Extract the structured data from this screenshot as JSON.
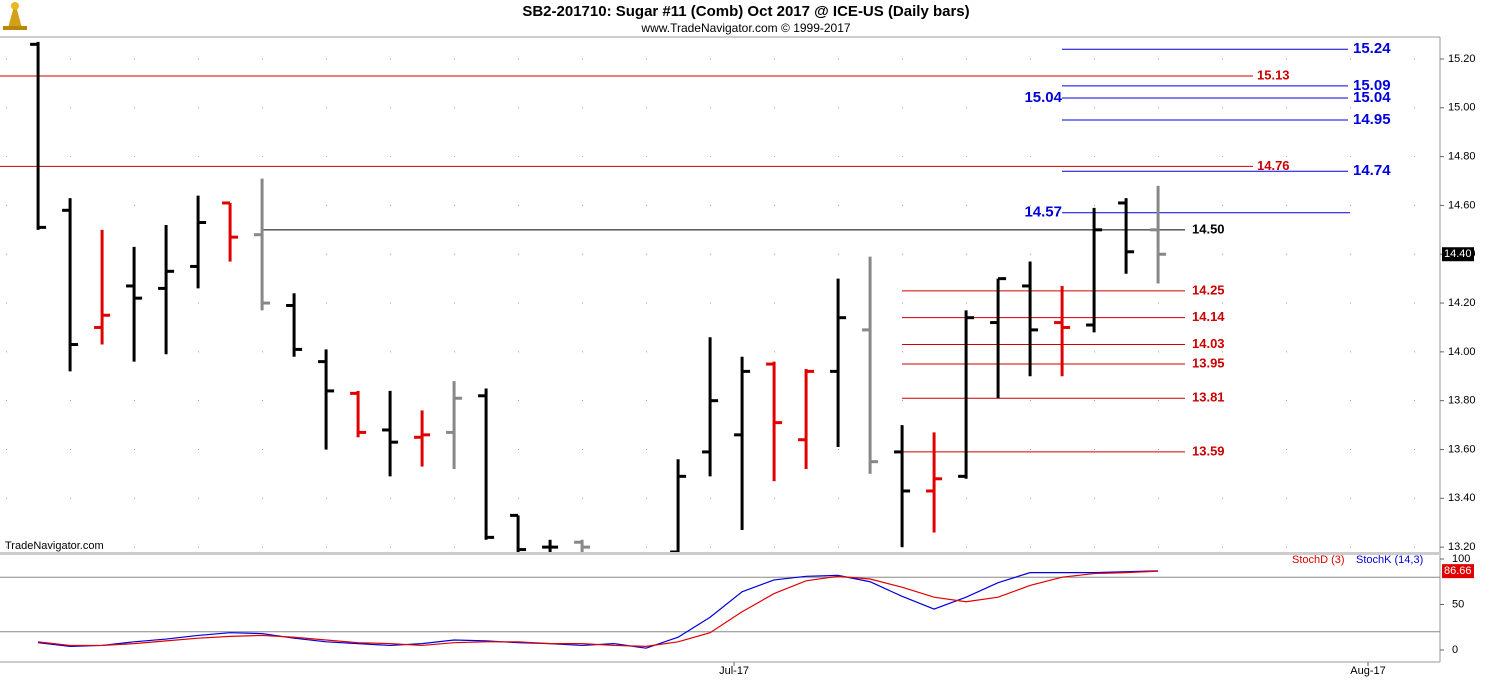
{
  "chart_data": {
    "type": "ohlc",
    "title": "SB2-201710:  Sugar #11 (Comb) Oct 2017 @ ICE-US  (Daily bars)",
    "subtitle": "www.TradeNavigator.com © 1999-2017",
    "watermark": "TradeNavigator.com",
    "x": [
      0,
      1,
      2,
      3,
      4,
      5,
      6,
      7,
      8,
      9,
      10,
      11,
      12,
      13,
      14,
      15,
      16,
      17,
      18,
      19,
      20,
      21,
      22,
      23,
      24,
      25,
      26,
      27,
      28,
      29,
      30,
      31,
      32,
      33,
      34,
      35
    ],
    "xlim": [
      -1.19,
      43.81
    ],
    "xticks": [
      {
        "value": 21.75,
        "label": "Jul-17"
      },
      {
        "value": 41.56,
        "label": "Aug-17"
      }
    ],
    "open": [
      15.26,
      14.58,
      14.1,
      14.27,
      14.26,
      14.35,
      14.61,
      14.48,
      14.19,
      13.96,
      13.83,
      13.68,
      13.65,
      13.67,
      13.82,
      13.33,
      13.2,
      13.22,
      null,
      null,
      13.18,
      13.59,
      13.66,
      13.95,
      13.64,
      13.92,
      14.09,
      13.59,
      13.43,
      13.49,
      14.12,
      14.27,
      14.12,
      14.11,
      14.61,
      14.5
    ],
    "high": [
      15.27,
      14.63,
      14.5,
      14.43,
      14.52,
      14.64,
      14.61,
      14.71,
      14.24,
      14.01,
      13.84,
      13.84,
      13.76,
      13.88,
      13.85,
      13.33,
      13.23,
      13.23,
      null,
      null,
      13.56,
      14.06,
      13.98,
      13.96,
      13.93,
      14.3,
      14.39,
      13.7,
      13.67,
      14.17,
      14.3,
      14.37,
      14.27,
      14.59,
      14.63,
      14.68
    ],
    "low": [
      14.5,
      13.92,
      14.03,
      13.96,
      13.99,
      14.26,
      14.37,
      14.17,
      13.98,
      13.6,
      13.65,
      13.49,
      13.53,
      13.52,
      13.23,
      13.18,
      13.18,
      13.18,
      null,
      null,
      13.18,
      13.49,
      13.27,
      13.47,
      13.52,
      13.61,
      13.5,
      13.2,
      13.26,
      13.48,
      13.81,
      13.9,
      13.9,
      14.08,
      14.32,
      14.28
    ],
    "close": [
      14.51,
      14.03,
      14.15,
      14.22,
      14.33,
      14.53,
      14.47,
      14.2,
      14.01,
      13.84,
      13.67,
      13.63,
      13.66,
      13.81,
      13.24,
      13.19,
      13.2,
      13.2,
      null,
      null,
      13.49,
      13.8,
      13.92,
      13.71,
      13.92,
      14.14,
      13.55,
      13.43,
      13.48,
      14.14,
      14.3,
      14.09,
      14.1,
      14.5,
      14.41,
      14.4
    ],
    "colors": [
      "#000000",
      "#000000",
      "#e00000",
      "#000000",
      "#000000",
      "#000000",
      "#e00000",
      "#888888",
      "#000000",
      "#000000",
      "#e00000",
      "#000000",
      "#e00000",
      "#888888",
      "#000000",
      "#000000",
      "#000000",
      "#888888",
      null,
      null,
      "#000000",
      "#000000",
      "#000000",
      "#e00000",
      "#e00000",
      "#000000",
      "#888888",
      "#000000",
      "#e00000",
      "#000000",
      "#000000",
      "#000000",
      "#e00000",
      "#000000",
      "#000000",
      "#888888"
    ],
    "ylim": [
      13.18,
      15.29
    ],
    "yticks": [
      {
        "value": 13.2,
        "label": "13.20"
      },
      {
        "value": 13.4,
        "label": "13.40"
      },
      {
        "value": 13.6,
        "label": "13.60"
      },
      {
        "value": 13.8,
        "label": "13.80"
      },
      {
        "value": 14.0,
        "label": "14.00"
      },
      {
        "value": 14.2,
        "label": "14.20"
      },
      {
        "value": 14.4,
        "label": "14.40"
      },
      {
        "value": 14.6,
        "label": "14.60"
      },
      {
        "value": 14.8,
        "label": "14.80"
      },
      {
        "value": 15.0,
        "label": "15.00"
      },
      {
        "value": 15.2,
        "label": "15.20"
      }
    ],
    "grid": true,
    "last_price": {
      "value": 14.4,
      "label": "14.40"
    },
    "red_long_levels": [
      {
        "value": 15.13,
        "label": "15.13"
      },
      {
        "value": 14.76,
        "label": "14.76"
      }
    ],
    "red_short_levels": [
      {
        "value": 14.25,
        "label": "14.25"
      },
      {
        "value": 14.14,
        "label": "14.14"
      },
      {
        "value": 14.03,
        "label": "14.03"
      },
      {
        "value": 13.95,
        "label": "13.95"
      },
      {
        "value": 13.81,
        "label": "13.81"
      },
      {
        "value": 13.59,
        "label": "13.59"
      }
    ],
    "black_level": {
      "value": 14.5,
      "label": "14.50"
    },
    "blue_levels": [
      {
        "value": 15.24,
        "label": "15.24",
        "side": "right"
      },
      {
        "value": 15.09,
        "label": "15.09",
        "side": "right"
      },
      {
        "value": 15.04,
        "label": "15.04",
        "side": "both"
      },
      {
        "value": 14.95,
        "label": "14.95",
        "side": "right"
      },
      {
        "value": 14.74,
        "label": "14.74",
        "side": "right"
      },
      {
        "value": 14.57,
        "label": "14.57",
        "side": "left"
      }
    ],
    "stochastic": {
      "ylim": [
        -13.2,
        107.7
      ],
      "yticks": [
        0,
        50,
        100
      ],
      "levels": [
        20,
        80
      ],
      "series": [
        {
          "name": "StochD (3)",
          "color": "#e00000",
          "values": [
            9,
            5,
            5,
            7,
            10,
            13,
            15,
            16,
            14,
            11,
            8,
            7,
            5,
            8,
            9,
            9,
            7,
            7,
            5,
            4,
            9,
            19,
            42,
            62,
            76,
            81,
            78,
            69,
            58,
            53,
            58,
            71,
            80,
            84,
            85,
            86.66
          ]
        },
        {
          "name": "StochK (14,3)",
          "color": "#0000dd",
          "values": [
            8,
            4,
            5,
            9,
            12,
            16,
            19,
            18,
            13,
            9,
            7,
            5,
            7,
            11,
            10,
            8,
            7,
            5,
            7,
            2,
            14,
            36,
            64,
            77,
            81,
            82,
            75,
            59,
            45,
            58,
            74,
            85,
            85,
            85,
            86,
            87
          ]
        }
      ]
    }
  }
}
